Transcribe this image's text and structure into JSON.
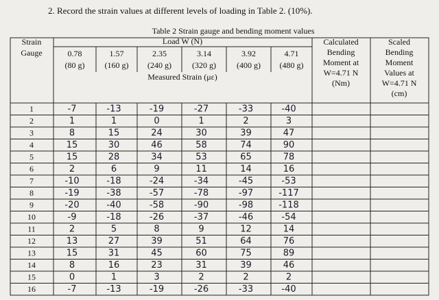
{
  "instruction": "2. Record the strain values at different levels of loading in Table 2. (10%).",
  "table": {
    "caption": "Table 2 Strain gauge and bending moment values",
    "gauge_header": [
      "Strain",
      "Gauge"
    ],
    "load_label": "Load W (N)",
    "loads": [
      {
        "value": "0.78",
        "mass": "(80 g)"
      },
      {
        "value": "1.57",
        "mass": "(160 g)"
      },
      {
        "value": "2.35",
        "mass": "(240 g)"
      },
      {
        "value": "3.14",
        "mass": "(320 g)"
      },
      {
        "value": "3.92",
        "mass": "(400 g)"
      },
      {
        "value": "4.71",
        "mass": "(480 g)"
      }
    ],
    "measured_label": "Measured Strain (με)",
    "calc_header": [
      "Calculated",
      "Bending",
      "Moment at",
      "W=4.71 N",
      "(Nm)"
    ],
    "scaled_header": [
      "Scaled",
      "Bending",
      "Moment",
      "Values at",
      "W=4.71 N",
      "(cm)"
    ],
    "rows": [
      {
        "gauge": "1",
        "strains": [
          "-7",
          "-13",
          "-19",
          "-27",
          "-33",
          "-40"
        ]
      },
      {
        "gauge": "2",
        "strains": [
          "1",
          "1",
          "0",
          "1",
          "2",
          "3"
        ]
      },
      {
        "gauge": "3",
        "strains": [
          "8",
          "15",
          "24",
          "30",
          "39",
          "47"
        ]
      },
      {
        "gauge": "4",
        "strains": [
          "15",
          "30",
          "46",
          "58",
          "74",
          "90"
        ]
      },
      {
        "gauge": "5",
        "strains": [
          "15",
          "28",
          "34",
          "53",
          "65",
          "78"
        ]
      },
      {
        "gauge": "6",
        "strains": [
          "2",
          "6",
          "9",
          "11",
          "14",
          "16"
        ]
      },
      {
        "gauge": "7",
        "strains": [
          "-10",
          "-18",
          "-24",
          "-34",
          "-45",
          "-53"
        ]
      },
      {
        "gauge": "8",
        "strains": [
          "-19",
          "-38",
          "-57",
          "-78",
          "-97",
          "-117"
        ]
      },
      {
        "gauge": "9",
        "strains": [
          "-20",
          "-40",
          "-58",
          "-90",
          "-98",
          "-118"
        ]
      },
      {
        "gauge": "10",
        "strains": [
          "-9",
          "-18",
          "-26",
          "-37",
          "-46",
          "-54"
        ]
      },
      {
        "gauge": "11",
        "strains": [
          "2",
          "5",
          "8",
          "9",
          "12",
          "14"
        ]
      },
      {
        "gauge": "12",
        "strains": [
          "13",
          "27",
          "39",
          "51",
          "64",
          "76"
        ]
      },
      {
        "gauge": "13",
        "strains": [
          "15",
          "31",
          "45",
          "60",
          "75",
          "89"
        ]
      },
      {
        "gauge": "14",
        "strains": [
          "8",
          "16",
          "23",
          "31",
          "39",
          "46"
        ]
      },
      {
        "gauge": "15",
        "strains": [
          "0",
          "1",
          "3",
          "2",
          "2",
          "2"
        ]
      },
      {
        "gauge": "16",
        "strains": [
          "-7",
          "-13",
          "-19",
          "-26",
          "-33",
          "-40"
        ]
      }
    ]
  }
}
